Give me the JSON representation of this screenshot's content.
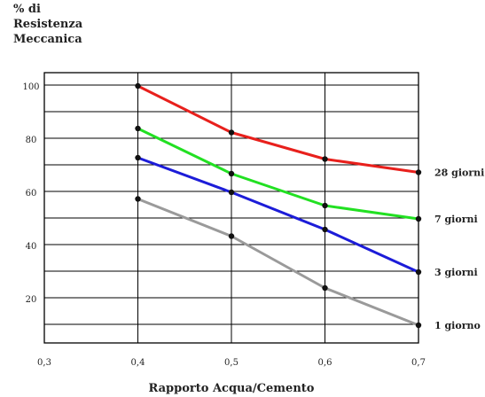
{
  "chart_data": {
    "type": "line",
    "ylabel": [
      "% di",
      "Resistenza",
      "Meccanica"
    ],
    "xlabel": "Rapporto Acqua/Cemento",
    "x_ticks": [
      "0,3",
      "0,4",
      "0,5",
      "0,6",
      "0,7"
    ],
    "y_ticks": [
      "100",
      "80",
      "60",
      "40",
      "20"
    ],
    "xlim": [
      0.3,
      0.7
    ],
    "ylim": [
      0,
      105
    ],
    "grid": true,
    "x": [
      0.4,
      0.5,
      0.6,
      0.7
    ],
    "series": [
      {
        "name": "28 giorni",
        "color": "#e8201c",
        "values": [
          100,
          82.5,
          72.5,
          67.5
        ]
      },
      {
        "name": "7 giorni",
        "color": "#22e022",
        "values": [
          84,
          67,
          55,
          50
        ]
      },
      {
        "name": "3 giorni",
        "color": "#1c1cd8",
        "values": [
          73,
          60,
          46,
          30
        ]
      },
      {
        "name": "1 giorno",
        "color": "#9a9a9a",
        "values": [
          57.5,
          43.5,
          24,
          10
        ]
      }
    ]
  }
}
